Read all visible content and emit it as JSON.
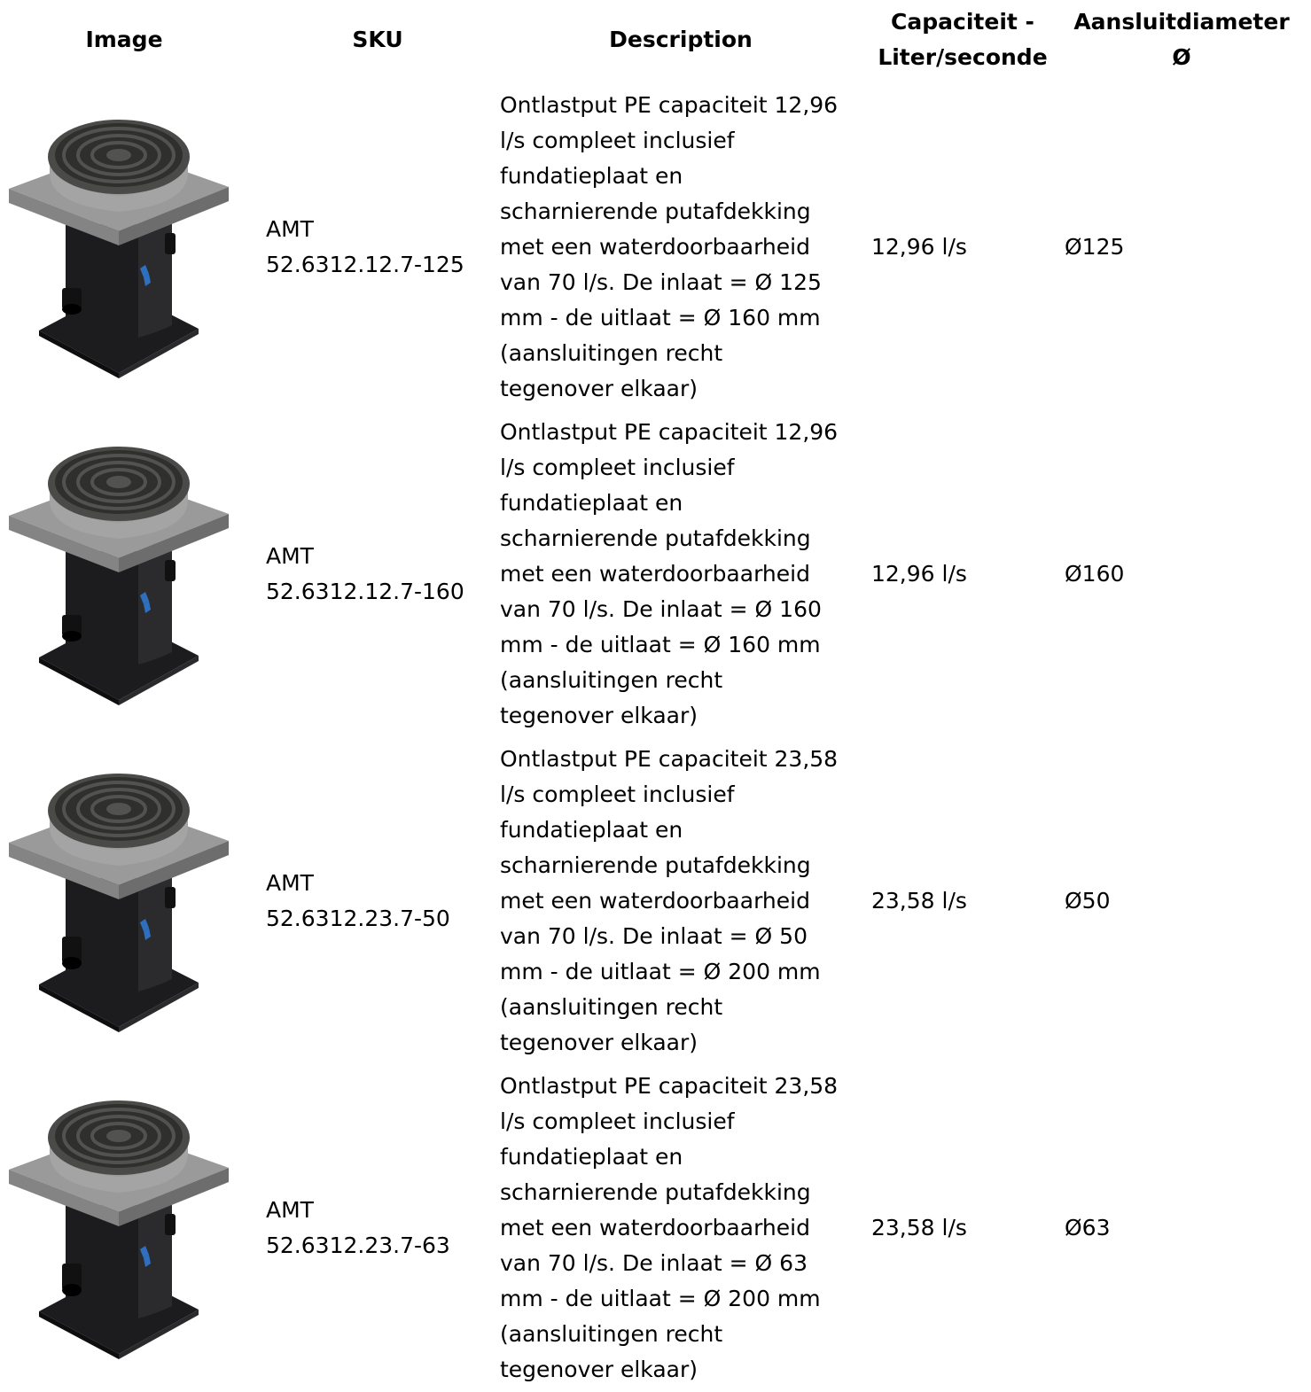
{
  "table": {
    "headers": {
      "image": "Image",
      "sku": "SKU",
      "description": "Description",
      "capacity": "Capaciteit -\nLiter/seconde",
      "diameter": "Aansluitdiameter\nØ"
    },
    "rows": [
      {
        "image_icon": "ontlastput-product-image",
        "sku": "AMT\n52.6312.12.7-125",
        "description": "Ontlastput PE capaciteit 12,96\nl/s compleet inclusief\nfundatieplaat en\nscharnierende putafdekking\nmet een waterdoorbaarheid\nvan 70 l/s. De inlaat = Ø 125\nmm - de uitlaat = Ø 160 mm\n(aansluitingen recht\ntegenover elkaar)",
        "capacity": "12,96 l/s",
        "diameter": "Ø125"
      },
      {
        "image_icon": "ontlastput-product-image",
        "sku": "AMT\n52.6312.12.7-160",
        "description": "Ontlastput PE capaciteit 12,96\nl/s compleet inclusief\nfundatieplaat en\nscharnierende putafdekking\nmet een waterdoorbaarheid\nvan 70 l/s. De inlaat = Ø 160\nmm - de uitlaat = Ø 160 mm\n(aansluitingen recht\ntegenover elkaar)",
        "capacity": "12,96 l/s",
        "diameter": "Ø160"
      },
      {
        "image_icon": "ontlastput-product-image",
        "sku": "AMT\n52.6312.23.7-50",
        "description": "Ontlastput PE capaciteit 23,58\nl/s compleet inclusief\nfundatieplaat en\nscharnierende putafdekking\nmet een waterdoorbaarheid\nvan 70 l/s. De inlaat = Ø 50\nmm - de uitlaat = Ø 200 mm\n(aansluitingen recht\ntegenover elkaar)",
        "capacity": "23,58 l/s",
        "diameter": "Ø50"
      },
      {
        "image_icon": "ontlastput-product-image",
        "sku": "AMT\n52.6312.23.7-63",
        "description": "Ontlastput PE capaciteit 23,58\nl/s compleet inclusief\nfundatieplaat en\nscharnierende putafdekking\nmet een waterdoorbaarheid\nvan 70 l/s. De inlaat = Ø 63\nmm - de uitlaat = Ø 200 mm\n(aansluitingen recht\ntegenover elkaar)",
        "capacity": "23,58 l/s",
        "diameter": "Ø63"
      }
    ]
  },
  "colors": {
    "text": "#000000",
    "background": "#ffffff",
    "product_body": "#1c1c1e",
    "product_slab": "#9a9a9a",
    "product_grate": "#3a3a38",
    "product_logo": "#2f6fc0"
  }
}
